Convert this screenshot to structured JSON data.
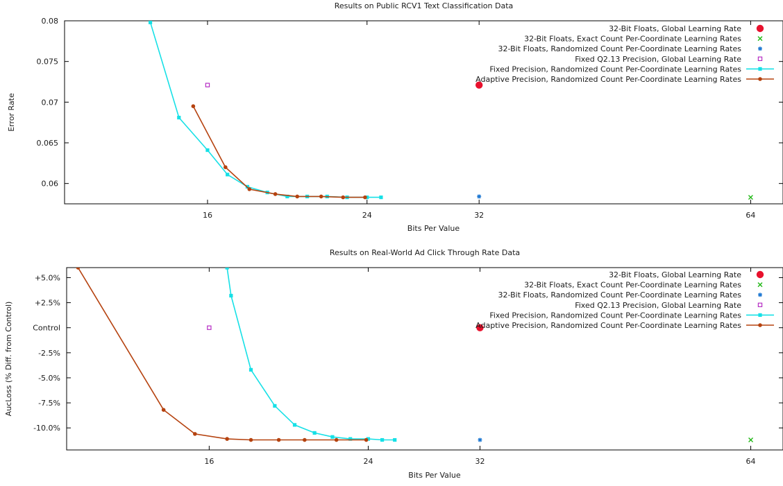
{
  "chart_data": [
    {
      "type": "line",
      "title": "Results on Public RCV1 Text Classification Data",
      "xlabel": "Bits Per Value",
      "ylabel": "Error Rate",
      "x_ticks": [
        {
          "value": 16,
          "label": "16"
        },
        {
          "value": 24,
          "label": "24"
        },
        {
          "value": 32,
          "label": "32"
        },
        {
          "value": 64,
          "label": "64"
        }
      ],
      "y_ticks": [
        {
          "value": 0.06,
          "label": "0.06"
        },
        {
          "value": 0.065,
          "label": "0.065"
        },
        {
          "value": 0.07,
          "label": "0.07"
        },
        {
          "value": 0.075,
          "label": "0.075"
        },
        {
          "value": 0.08,
          "label": "0.08"
        }
      ],
      "ylim": [
        0.0575,
        0.08
      ],
      "legend_position": "top-right",
      "grid": false,
      "series": [
        {
          "name": "32-Bit Floats, Global Learning Rate",
          "style": "point",
          "marker": "filled-circle",
          "color": "#e8112d",
          "points": [
            {
              "x": 32,
              "y": 0.0721
            }
          ]
        },
        {
          "name": "32-Bit Floats, Exact Count Per-Coordinate Learning Rates",
          "style": "point",
          "marker": "x",
          "color": "#1fb714",
          "points": [
            {
              "x": 64,
              "y": 0.0583
            }
          ]
        },
        {
          "name": "32-Bit Floats, Randomized Count Per-Coordinate Learning Rates",
          "style": "point",
          "marker": "star",
          "color": "#1e78d2",
          "points": [
            {
              "x": 32,
              "y": 0.0584
            }
          ]
        },
        {
          "name": "Fixed Q2.13 Precision, Global Learning Rate",
          "style": "point",
          "marker": "open-square",
          "color": "#b62ec4",
          "points": [
            {
              "x": 16,
              "y": 0.0721
            }
          ]
        },
        {
          "name": "Fixed Precision, Randomized Count Per-Coordinate Learning Rates",
          "style": "line",
          "marker": "filled-square",
          "color": "#16e0e6",
          "points": [
            {
              "x": 14,
              "y": 0.0798
            },
            {
              "x": 15,
              "y": 0.0681
            },
            {
              "x": 16,
              "y": 0.0641
            },
            {
              "x": 17,
              "y": 0.0611
            },
            {
              "x": 18,
              "y": 0.0596
            },
            {
              "x": 19,
              "y": 0.0589
            },
            {
              "x": 20,
              "y": 0.0584
            },
            {
              "x": 21,
              "y": 0.0584
            },
            {
              "x": 22,
              "y": 0.0584
            },
            {
              "x": 23,
              "y": 0.0583
            },
            {
              "x": 24,
              "y": 0.0583
            },
            {
              "x": 25,
              "y": 0.0583
            }
          ]
        },
        {
          "name": "Adaptive Precision, Randomized Count Per-Coordinate Learning Rates",
          "style": "line",
          "marker": "filled-circle",
          "color": "#b5420f",
          "points": [
            {
              "x": 15.5,
              "y": 0.0695
            },
            {
              "x": 16.9,
              "y": 0.062
            },
            {
              "x": 18.1,
              "y": 0.0593
            },
            {
              "x": 19.4,
              "y": 0.0587
            },
            {
              "x": 20.5,
              "y": 0.0584
            },
            {
              "x": 21.7,
              "y": 0.0584
            },
            {
              "x": 22.8,
              "y": 0.0583
            },
            {
              "x": 23.9,
              "y": 0.0583
            }
          ]
        }
      ]
    },
    {
      "type": "line",
      "title": "Results on Real-World Ad Click Through Rate Data",
      "xlabel": "Bits Per Value",
      "ylabel": "AucLoss (% Diff. from Control)",
      "x_ticks": [
        {
          "value": 16,
          "label": "16"
        },
        {
          "value": 24,
          "label": "24"
        },
        {
          "value": 32,
          "label": "32"
        },
        {
          "value": 64,
          "label": "64"
        }
      ],
      "y_ticks": [
        {
          "value": 5,
          "label": "+5.0%"
        },
        {
          "value": 2.5,
          "label": "+2.5%"
        },
        {
          "value": 0,
          "label": "Control"
        },
        {
          "value": -2.5,
          "label": "-2.5%"
        },
        {
          "value": -5,
          "label": "-5.0%"
        },
        {
          "value": -7.5,
          "label": "-7.5%"
        },
        {
          "value": -10,
          "label": "-10.0%"
        }
      ],
      "ylim": [
        -12.2,
        6.0
      ],
      "legend_position": "top-right",
      "grid": false,
      "series": [
        {
          "name": "32-Bit Floats, Global Learning Rate",
          "style": "point",
          "marker": "filled-circle",
          "color": "#e8112d",
          "points": [
            {
              "x": 32,
              "y": 0
            }
          ]
        },
        {
          "name": "32-Bit Floats, Exact Count Per-Coordinate Learning Rates",
          "style": "point",
          "marker": "x",
          "color": "#1fb714",
          "points": [
            {
              "x": 64,
              "y": -11.2
            }
          ]
        },
        {
          "name": "32-Bit Floats, Randomized Count Per-Coordinate Learning Rates",
          "style": "point",
          "marker": "star",
          "color": "#1e78d2",
          "points": [
            {
              "x": 32,
              "y": -11.2
            }
          ]
        },
        {
          "name": "Fixed Q2.13 Precision, Global Learning Rate",
          "style": "point",
          "marker": "open-square",
          "color": "#b62ec4",
          "points": [
            {
              "x": 16,
              "y": 0
            }
          ]
        },
        {
          "name": "Fixed Precision, Randomized Count Per-Coordinate Learning Rates",
          "style": "line",
          "marker": "filled-square",
          "color": "#16e0e6",
          "points": [
            {
              "x": 16.9,
              "y": 6.0
            },
            {
              "x": 17.1,
              "y": 3.2
            },
            {
              "x": 18.1,
              "y": -4.2
            },
            {
              "x": 19.3,
              "y": -7.8
            },
            {
              "x": 20.3,
              "y": -9.7
            },
            {
              "x": 21.3,
              "y": -10.5
            },
            {
              "x": 22.2,
              "y": -10.9
            },
            {
              "x": 23.1,
              "y": -11.1
            },
            {
              "x": 24.0,
              "y": -11.1
            },
            {
              "x": 25.0,
              "y": -11.2
            },
            {
              "x": 25.9,
              "y": -11.2
            }
          ]
        },
        {
          "name": "Adaptive Precision, Randomized Count Per-Coordinate Learning Rates",
          "style": "line",
          "marker": "filled-circle",
          "color": "#b5420f",
          "points": [
            {
              "x": 11.4,
              "y": 6.0
            },
            {
              "x": 14.4,
              "y": -8.2
            },
            {
              "x": 15.5,
              "y": -10.6
            },
            {
              "x": 16.9,
              "y": -11.1
            },
            {
              "x": 18.1,
              "y": -11.2
            },
            {
              "x": 19.5,
              "y": -11.2
            },
            {
              "x": 20.8,
              "y": -11.2
            },
            {
              "x": 22.4,
              "y": -11.2
            },
            {
              "x": 23.9,
              "y": -11.2
            }
          ]
        }
      ]
    }
  ]
}
